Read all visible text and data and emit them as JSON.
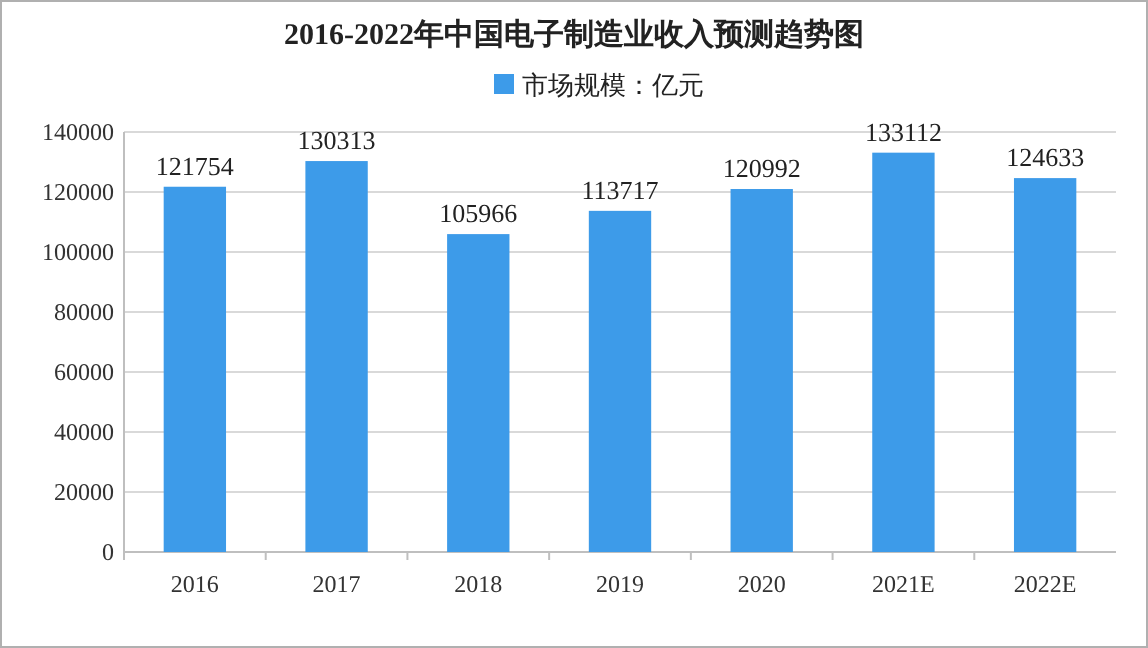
{
  "chart_data": {
    "type": "bar",
    "title": "2016-2022年中国电子制造业收入预测趋势图",
    "categories": [
      "2016",
      "2017",
      "2018",
      "2019",
      "2020",
      "2021E",
      "2022E"
    ],
    "series": [
      {
        "name": "市场规模：亿元",
        "color": "#3d9be9",
        "values": [
          121754,
          130313,
          105966,
          113717,
          120992,
          133112,
          124633
        ]
      }
    ],
    "ylim": [
      0,
      140000
    ],
    "yticks": [
      0,
      20000,
      40000,
      60000,
      80000,
      100000,
      120000,
      140000
    ],
    "grid": "y",
    "legend": "top",
    "data_labels": true
  }
}
